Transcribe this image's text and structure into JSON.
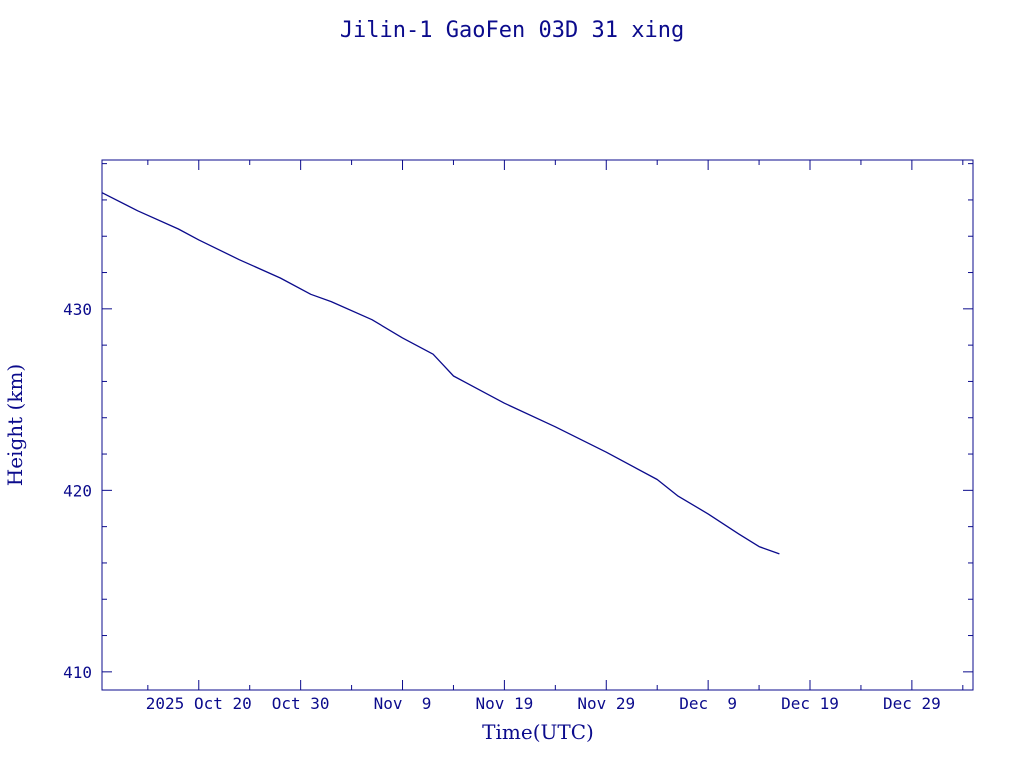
{
  "chart_data": {
    "type": "line",
    "title": "Jilin-1 GaoFen 03D 31 xing",
    "xlabel": "Time(UTC)",
    "ylabel": "Height (km)",
    "xlim": [
      "2025-10-10T12:00",
      "2026-01-04"
    ],
    "ylim": [
      409,
      438.2
    ],
    "grid": false,
    "color": "#0b0b8c",
    "xticks": [
      {
        "date": "2025-10-20",
        "label": "2025 Oct 20"
      },
      {
        "date": "2025-10-30",
        "label": "Oct 30"
      },
      {
        "date": "2025-11-09",
        "label": "Nov  9"
      },
      {
        "date": "2025-11-19",
        "label": "Nov 19"
      },
      {
        "date": "2025-11-29",
        "label": "Nov 29"
      },
      {
        "date": "2025-12-09",
        "label": "Dec  9"
      },
      {
        "date": "2025-12-19",
        "label": "Dec 19"
      },
      {
        "date": "2025-12-29",
        "label": "Dec 29"
      }
    ],
    "yticks": [
      410,
      420,
      430
    ],
    "series": [
      {
        "points": [
          {
            "date": "2025-10-10T12:00",
            "value": 436.4
          },
          {
            "date": "2025-10-14",
            "value": 435.4
          },
          {
            "date": "2025-10-18",
            "value": 434.4
          },
          {
            "date": "2025-10-20",
            "value": 433.8
          },
          {
            "date": "2025-10-24",
            "value": 432.7
          },
          {
            "date": "2025-10-28",
            "value": 431.7
          },
          {
            "date": "2025-10-31",
            "value": 430.8
          },
          {
            "date": "2025-11-02",
            "value": 430.4
          },
          {
            "date": "2025-11-06",
            "value": 429.4
          },
          {
            "date": "2025-11-09",
            "value": 428.4
          },
          {
            "date": "2025-11-12",
            "value": 427.5
          },
          {
            "date": "2025-11-13",
            "value": 426.9
          },
          {
            "date": "2025-11-14",
            "value": 426.3
          },
          {
            "date": "2025-11-17",
            "value": 425.4
          },
          {
            "date": "2025-11-19",
            "value": 424.8
          },
          {
            "date": "2025-11-24",
            "value": 423.5
          },
          {
            "date": "2025-11-29",
            "value": 422.1
          },
          {
            "date": "2025-12-04",
            "value": 420.6
          },
          {
            "date": "2025-12-06",
            "value": 419.7
          },
          {
            "date": "2025-12-09",
            "value": 418.7
          },
          {
            "date": "2025-12-12",
            "value": 417.6
          },
          {
            "date": "2025-12-14",
            "value": 416.9
          },
          {
            "date": "2025-12-16",
            "value": 416.5
          }
        ]
      }
    ]
  }
}
